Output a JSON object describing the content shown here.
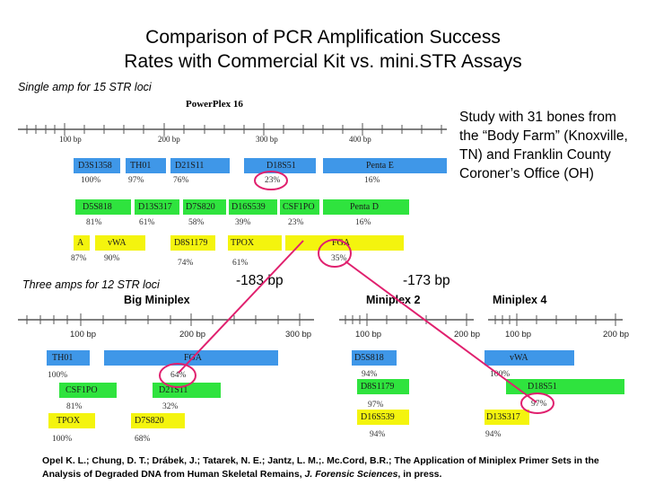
{
  "title_line1": "Comparison of PCR Amplification Success",
  "title_line2": "Rates with Commercial Kit vs. mini.STR Assays",
  "single_amp_label": "Single amp for 15 STR loci",
  "three_amps_label": "Three amps for 12 STR loci",
  "study_text": "Study with 31 bones from the “Body Farm” (Knoxville, TN) and Franklin County Coroner’s Office (OH)",
  "bp_label_left": "-183 bp",
  "bp_label_right": "-173 bp",
  "powerplex": {
    "title": "PowerPlex 16",
    "ticks": [
      "100 bp",
      "200 bp",
      "300 bp",
      "400 bp"
    ],
    "loci": [
      {
        "name": "D3S1358",
        "pct": "100%"
      },
      {
        "name": "TH01",
        "pct": "97%"
      },
      {
        "name": "D21S11",
        "pct": "76%"
      },
      {
        "name": "D18S51",
        "pct": "23%"
      },
      {
        "name": "Penta E",
        "pct": "16%"
      },
      {
        "name": "D5S818",
        "pct": "81%"
      },
      {
        "name": "D13S317",
        "pct": "61%"
      },
      {
        "name": "D7S820",
        "pct": "58%"
      },
      {
        "name": "D16S539",
        "pct": "39%"
      },
      {
        "name": "CSF1PO",
        "pct": "23%"
      },
      {
        "name": "Penta D",
        "pct": "16%"
      },
      {
        "name": "A",
        "pct": "87%"
      },
      {
        "name": "vWA",
        "pct": "90%"
      },
      {
        "name": "D8S1179",
        "pct": "74%"
      },
      {
        "name": "TPOX",
        "pct": "61%"
      },
      {
        "name": "FGA",
        "pct": "35%"
      }
    ]
  },
  "big_miniplex": {
    "title": "Big Miniplex",
    "ticks": [
      "100 bp",
      "200 bp",
      "300 bp"
    ],
    "loci": [
      {
        "name": "TH01",
        "pct": "100%"
      },
      {
        "name": "FGA",
        "pct": "64%"
      },
      {
        "name": "CSF1PO",
        "pct": "81%"
      },
      {
        "name": "D21S11",
        "pct": "32%"
      },
      {
        "name": "TPOX",
        "pct": "100%"
      },
      {
        "name": "D7S820",
        "pct": "68%"
      }
    ]
  },
  "miniplex2": {
    "title": "Miniplex 2",
    "ticks": [
      "100 bp",
      "200 bp"
    ],
    "loci": [
      {
        "name": "D5S818",
        "pct": "94%"
      },
      {
        "name": "D8S1179",
        "pct": "97%"
      },
      {
        "name": "D16S539",
        "pct": "94%"
      }
    ]
  },
  "miniplex4": {
    "title": "Miniplex 4",
    "ticks": [
      "100 bp",
      "200 bp"
    ],
    "loci": [
      {
        "name": "vWA",
        "pct": "100%"
      },
      {
        "name": "D18S51",
        "pct": "97%"
      },
      {
        "name": "D13S317",
        "pct": "94%"
      }
    ]
  },
  "citation_pre": "Opel K. L.; Chung, D. T.; Drábek, J.; Tatarek, N. E.; Jantz, L. M.;. Mc.Cord, B.R.; The Application of Miniplex Primer Sets in the Analysis of Degraded DNA from Human Skeletal Remains, ",
  "citation_journal": "J. Forensic Sciences",
  "citation_post": ", in press.",
  "colors": {
    "blue": "#3f97e8",
    "green": "#2fe33e",
    "yellow": "#f4f40e",
    "highlight": "#e0206e"
  }
}
